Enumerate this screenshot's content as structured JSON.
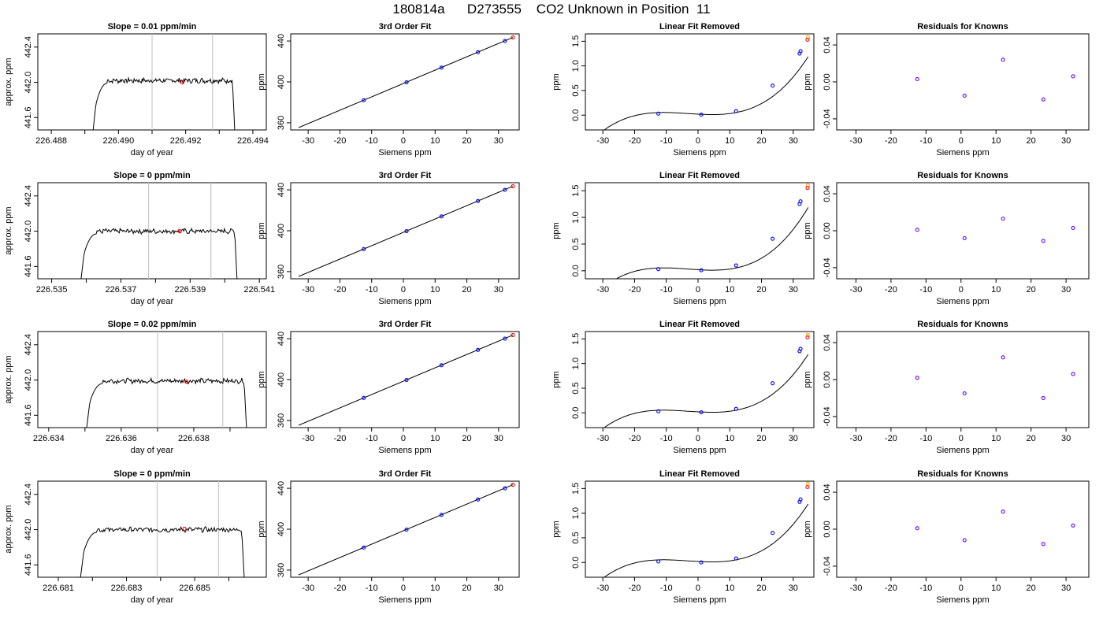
{
  "page_title": "180814a      D273555    CO2 Unknown in Position  11",
  "colors": {
    "trace": "#000000",
    "vline": "#c8c8c8",
    "unknown_point": "#ff0000",
    "known_point": "#0000ff",
    "residual_point": "#6a00ff",
    "highlight": "#ffa500"
  },
  "chart_data": [
    {
      "type": "line",
      "row": 1,
      "title": "Slope =  0.01  ppm/min",
      "xlabel": "day of year",
      "ylabel": "approx. ppm",
      "xlim": [
        226.4876,
        226.4944
      ],
      "ylim": [
        441.46,
        442.55
      ],
      "xticks": [
        226.488,
        226.489,
        226.49,
        226.491,
        226.492,
        226.493,
        226.494
      ],
      "xtick_labels": [
        "226.488",
        "",
        "226.490",
        "",
        "226.492",
        "",
        "226.494"
      ],
      "yticks": [
        441.6,
        442.0,
        442.4
      ],
      "ytick_labels": [
        "441.6",
        "442.0",
        "442.4"
      ],
      "trace_start": 226.4892,
      "trace_end": 226.4935,
      "plateau": 442.02,
      "vlines": [
        226.491,
        226.4928
      ],
      "unknown_point": {
        "x": 226.4919,
        "y": 442.0
      }
    },
    {
      "type": "line",
      "row": 2,
      "title": "Slope =  0  ppm/min",
      "xlabel": "day of year",
      "ylabel": "approx. ppm",
      "xlim": [
        226.5346,
        226.5412
      ],
      "ylim": [
        441.46,
        442.55
      ],
      "xticks": [
        226.535,
        226.536,
        226.537,
        226.538,
        226.539,
        226.54,
        226.541
      ],
      "xtick_labels": [
        "226.535",
        "",
        "226.537",
        "",
        "226.539",
        "",
        "226.541"
      ],
      "yticks": [
        441.6,
        442.0,
        442.4
      ],
      "ytick_labels": [
        "441.6",
        "442.0",
        "442.4"
      ],
      "trace_start": 226.5358,
      "trace_end": 226.5404,
      "plateau": 442.0,
      "vlines": [
        226.5378,
        226.5396
      ],
      "unknown_point": {
        "x": 226.5387,
        "y": 442.0
      }
    },
    {
      "type": "line",
      "row": 3,
      "title": "Slope =  0.02  ppm/min",
      "xlabel": "day of year",
      "ylabel": "approx. ppm",
      "xlim": [
        226.6337,
        226.64
      ],
      "ylim": [
        441.46,
        442.55
      ],
      "xticks": [
        226.634,
        226.635,
        226.636,
        226.637,
        226.638,
        226.639
      ],
      "xtick_labels": [
        "226.634",
        "",
        "226.636",
        "",
        "226.638",
        ""
      ],
      "yticks": [
        441.6,
        442.0,
        442.4
      ],
      "ytick_labels": [
        "441.6",
        "442.0",
        "442.4"
      ],
      "trace_start": 226.635,
      "trace_end": 226.6395,
      "plateau": 441.99,
      "vlines": [
        226.637,
        226.6388
      ],
      "unknown_point": {
        "x": 226.6378,
        "y": 441.98
      }
    },
    {
      "type": "line",
      "row": 4,
      "title": "Slope =  0  ppm/min",
      "xlabel": "day of year",
      "ylabel": "approx. ppm",
      "xlim": [
        226.6804,
        226.6871
      ],
      "ylim": [
        441.46,
        442.55
      ],
      "xticks": [
        226.681,
        226.682,
        226.683,
        226.684,
        226.685,
        226.686
      ],
      "xtick_labels": [
        "226.681",
        "",
        "226.683",
        "",
        "226.685",
        ""
      ],
      "yticks": [
        441.6,
        442.0,
        442.4
      ],
      "ytick_labels": [
        "441.6",
        "442.0",
        "442.4"
      ],
      "trace_start": 226.6816,
      "trace_end": 226.6865,
      "plateau": 442.0,
      "vlines": [
        226.6839,
        226.6857
      ],
      "unknown_point": {
        "x": 226.6847,
        "y": 442.01
      }
    },
    {
      "type": "line",
      "row": 1,
      "title": "3rd Order Fit",
      "xlabel": "Siemens ppm",
      "ylabel": "ppm",
      "xlim": [
        -35.5,
        36.5
      ],
      "ylim": [
        353,
        447
      ],
      "xticks": [
        -30,
        -20,
        -10,
        0,
        10,
        20,
        30
      ],
      "xtick_labels": [
        "-30",
        "-20",
        "-10",
        "0",
        "10",
        "20",
        "30"
      ],
      "yticks": [
        360,
        400,
        440
      ],
      "ytick_labels": [
        "360",
        "400",
        "440"
      ],
      "fit_line": [
        [
          -33,
          355.3
        ],
        [
          34.5,
          443.5
        ]
      ],
      "known_points": [
        [
          -12.5,
          382
        ],
        [
          1,
          399.6
        ],
        [
          12,
          414
        ],
        [
          23.5,
          429
        ],
        [
          32,
          440
        ]
      ],
      "unknown_point": [
        34.5,
        443.5
      ]
    },
    {
      "type": "line",
      "row": 2,
      "title": "3rd Order Fit",
      "xlabel": "Siemens ppm",
      "ylabel": "ppm",
      "xlim": [
        -35.5,
        36.5
      ],
      "ylim": [
        353,
        447
      ],
      "xticks": [
        -30,
        -20,
        -10,
        0,
        10,
        20,
        30
      ],
      "xtick_labels": [
        "-30",
        "-20",
        "-10",
        "0",
        "10",
        "20",
        "30"
      ],
      "yticks": [
        360,
        400,
        440
      ],
      "ytick_labels": [
        "360",
        "400",
        "440"
      ],
      "fit_line": [
        [
          -33,
          355.3
        ],
        [
          34.5,
          443.5
        ]
      ],
      "known_points": [
        [
          -12.5,
          382
        ],
        [
          1,
          399.6
        ],
        [
          12,
          414
        ],
        [
          23.5,
          429
        ],
        [
          32,
          440
        ]
      ],
      "unknown_point": [
        34.5,
        443.5
      ]
    },
    {
      "type": "line",
      "row": 3,
      "title": "3rd Order Fit",
      "xlabel": "Siemens ppm",
      "ylabel": "ppm",
      "xlim": [
        -35.5,
        36.5
      ],
      "ylim": [
        353,
        447
      ],
      "xticks": [
        -30,
        -20,
        -10,
        0,
        10,
        20,
        30
      ],
      "xtick_labels": [
        "-30",
        "-20",
        "-10",
        "0",
        "10",
        "20",
        "30"
      ],
      "yticks": [
        360,
        400,
        440
      ],
      "ytick_labels": [
        "360",
        "400",
        "440"
      ],
      "fit_line": [
        [
          -33,
          355.3
        ],
        [
          34.5,
          443.5
        ]
      ],
      "known_points": [
        [
          -12.5,
          382
        ],
        [
          1,
          399.6
        ],
        [
          12,
          414
        ],
        [
          23.5,
          429
        ],
        [
          32,
          440
        ]
      ],
      "unknown_point": [
        34.5,
        443.5
      ]
    },
    {
      "type": "line",
      "row": 4,
      "title": "3rd Order Fit",
      "xlabel": "Siemens ppm",
      "ylabel": "ppm",
      "xlim": [
        -35.5,
        36.5
      ],
      "ylim": [
        353,
        447
      ],
      "xticks": [
        -30,
        -20,
        -10,
        0,
        10,
        20,
        30
      ],
      "xtick_labels": [
        "-30",
        "-20",
        "-10",
        "0",
        "10",
        "20",
        "30"
      ],
      "yticks": [
        360,
        400,
        440
      ],
      "ytick_labels": [
        "360",
        "400",
        "440"
      ],
      "fit_line": [
        [
          -33,
          355.3
        ],
        [
          34.5,
          443.5
        ]
      ],
      "known_points": [
        [
          -12.5,
          382
        ],
        [
          1,
          399.6
        ],
        [
          12,
          414
        ],
        [
          23.5,
          429
        ],
        [
          32,
          440
        ]
      ],
      "unknown_point": [
        34.5,
        443.5
      ]
    },
    {
      "type": "line",
      "row": 1,
      "title": "Linear Fit Removed",
      "xlabel": "Siemens ppm",
      "ylabel": "ppm",
      "xlim": [
        -35.5,
        36.5
      ],
      "ylim": [
        -0.3,
        1.65
      ],
      "xticks": [
        -30,
        -20,
        -10,
        0,
        10,
        20,
        30
      ],
      "xtick_labels": [
        "-30",
        "-20",
        "-10",
        "0",
        "10",
        "20",
        "30"
      ],
      "yticks": [
        0.0,
        0.5,
        1.0,
        1.5
      ],
      "ytick_labels": [
        "0.0",
        "0.5",
        "1.0",
        "1.5"
      ],
      "fit_curve": {
        "type": "cubic",
        "x_start": -33,
        "x_end": 34.7,
        "coeffs": [
          0.02,
          -0.0035,
          0.00023,
          2.42e-05
        ]
      },
      "known_points": [
        [
          -12.5,
          0.03
        ],
        [
          1,
          0.01
        ],
        [
          12,
          0.08
        ],
        [
          23.5,
          0.6
        ],
        [
          32,
          1.25
        ],
        [
          32.3,
          1.3
        ]
      ],
      "unknown_point": [
        34.5,
        1.53
      ],
      "highlight_point": [
        34.6,
        1.58
      ]
    },
    {
      "type": "line",
      "row": 2,
      "title": "Linear Fit Removed",
      "xlabel": "Siemens ppm",
      "ylabel": "ppm",
      "xlim": [
        -35.5,
        36.5
      ],
      "ylim": [
        -0.15,
        1.65
      ],
      "xticks": [
        -30,
        -20,
        -10,
        0,
        10,
        20,
        30
      ],
      "xtick_labels": [
        "-30",
        "-20",
        "-10",
        "0",
        "10",
        "20",
        "30"
      ],
      "yticks": [
        0.0,
        0.5,
        1.0,
        1.5
      ],
      "ytick_labels": [
        "0.0",
        "0.5",
        "1.0",
        "1.5"
      ],
      "fit_curve": {
        "type": "cubic",
        "x_start": -33,
        "x_end": 34.7,
        "coeffs": [
          0.02,
          -0.0035,
          0.00023,
          2.42e-05
        ]
      },
      "known_points": [
        [
          -12.5,
          0.03
        ],
        [
          1,
          0.01
        ],
        [
          12,
          0.1
        ],
        [
          23.5,
          0.6
        ],
        [
          32,
          1.25
        ],
        [
          32.3,
          1.3
        ]
      ],
      "unknown_point": [
        34.5,
        1.55
      ],
      "highlight_point": [
        34.6,
        1.6
      ]
    },
    {
      "type": "line",
      "row": 3,
      "title": "Linear Fit Removed",
      "xlabel": "Siemens ppm",
      "ylabel": "ppm",
      "xlim": [
        -35.5,
        36.5
      ],
      "ylim": [
        -0.3,
        1.65
      ],
      "xticks": [
        -30,
        -20,
        -10,
        0,
        10,
        20,
        30
      ],
      "xtick_labels": [
        "-30",
        "-20",
        "-10",
        "0",
        "10",
        "20",
        "30"
      ],
      "yticks": [
        0.0,
        0.5,
        1.0,
        1.5
      ],
      "ytick_labels": [
        "0.0",
        "0.5",
        "1.0",
        "1.5"
      ],
      "fit_curve": {
        "type": "cubic",
        "x_start": -33,
        "x_end": 34.7,
        "coeffs": [
          0.02,
          -0.0035,
          0.00023,
          2.42e-05
        ]
      },
      "known_points": [
        [
          -12.5,
          0.03
        ],
        [
          1,
          0.01
        ],
        [
          12,
          0.08
        ],
        [
          23.5,
          0.6
        ],
        [
          32,
          1.25
        ],
        [
          32.3,
          1.3
        ]
      ],
      "unknown_point": [
        34.5,
        1.53
      ],
      "highlight_point": [
        34.6,
        1.58
      ]
    },
    {
      "type": "line",
      "row": 4,
      "title": "Linear Fit Removed",
      "xlabel": "Siemens ppm",
      "ylabel": "ppm",
      "xlim": [
        -35.5,
        36.5
      ],
      "ylim": [
        -0.3,
        1.65
      ],
      "xticks": [
        -30,
        -20,
        -10,
        0,
        10,
        20,
        30
      ],
      "xtick_labels": [
        "-30",
        "-20",
        "-10",
        "0",
        "10",
        "20",
        "30"
      ],
      "yticks": [
        0.0,
        0.5,
        1.0,
        1.5
      ],
      "ytick_labels": [
        "0.0",
        "0.5",
        "1.0",
        "1.5"
      ],
      "fit_curve": {
        "type": "cubic",
        "x_start": -33,
        "x_end": 34.7,
        "coeffs": [
          0.02,
          -0.0035,
          0.00023,
          2.42e-05
        ]
      },
      "known_points": [
        [
          -12.5,
          0.02
        ],
        [
          1,
          0.0
        ],
        [
          12,
          0.08
        ],
        [
          23.5,
          0.6
        ],
        [
          32,
          1.23
        ],
        [
          32.3,
          1.28
        ]
      ],
      "unknown_point": [
        34.5,
        1.53
      ],
      "highlight_point": [
        34.6,
        1.6
      ]
    },
    {
      "type": "scatter",
      "row": 1,
      "title": "Residuals for Knowns",
      "xlabel": "Siemens ppm",
      "ylabel": "ppm",
      "xlim": [
        -35.5,
        36.5
      ],
      "ylim": [
        -0.052,
        0.052
      ],
      "xticks": [
        -30,
        -20,
        -10,
        0,
        10,
        20,
        30
      ],
      "xtick_labels": [
        "-30",
        "-20",
        "-10",
        "0",
        "10",
        "20",
        "30"
      ],
      "yticks": [
        -0.04,
        0.0,
        0.04
      ],
      "ytick_labels": [
        "-0.04",
        "0.00",
        "0.04"
      ],
      "points": [
        [
          -12.5,
          0.003
        ],
        [
          1,
          -0.015
        ],
        [
          12,
          0.024
        ],
        [
          23.5,
          -0.019
        ],
        [
          32,
          0.006
        ]
      ]
    },
    {
      "type": "scatter",
      "row": 2,
      "title": "Residuals for Knowns",
      "xlabel": "Siemens ppm",
      "ylabel": "ppm",
      "xlim": [
        -35.5,
        36.5
      ],
      "ylim": [
        -0.052,
        0.052
      ],
      "xticks": [
        -30,
        -20,
        -10,
        0,
        10,
        20,
        30
      ],
      "xtick_labels": [
        "-30",
        "-20",
        "-10",
        "0",
        "10",
        "20",
        "30"
      ],
      "yticks": [
        -0.04,
        0.0,
        0.04
      ],
      "ytick_labels": [
        "-0.04",
        "0.00",
        "0.04"
      ],
      "points": [
        [
          -12.5,
          0.001
        ],
        [
          1,
          -0.008
        ],
        [
          12,
          0.013
        ],
        [
          23.5,
          -0.011
        ],
        [
          32,
          0.003
        ]
      ]
    },
    {
      "type": "scatter",
      "row": 3,
      "title": "Residuals for Knowns",
      "xlabel": "Siemens ppm",
      "ylabel": "ppm",
      "xlim": [
        -35.5,
        36.5
      ],
      "ylim": [
        -0.052,
        0.052
      ],
      "xticks": [
        -30,
        -20,
        -10,
        0,
        10,
        20,
        30
      ],
      "xtick_labels": [
        "-30",
        "-20",
        "-10",
        "0",
        "10",
        "20",
        "30"
      ],
      "yticks": [
        -0.04,
        0.0,
        0.04
      ],
      "ytick_labels": [
        "-0.04",
        "0.00",
        "0.04"
      ],
      "points": [
        [
          -12.5,
          0.002
        ],
        [
          1,
          -0.015
        ],
        [
          12,
          0.024
        ],
        [
          23.5,
          -0.02
        ],
        [
          32,
          0.006
        ]
      ]
    },
    {
      "type": "scatter",
      "row": 4,
      "title": "Residuals for Knowns",
      "xlabel": "Siemens ppm",
      "ylabel": "ppm",
      "xlim": [
        -35.5,
        36.5
      ],
      "ylim": [
        -0.052,
        0.052
      ],
      "xticks": [
        -30,
        -20,
        -10,
        0,
        10,
        20,
        30
      ],
      "xtick_labels": [
        "-30",
        "-20",
        "-10",
        "0",
        "10",
        "20",
        "30"
      ],
      "yticks": [
        -0.04,
        0.0,
        0.04
      ],
      "ytick_labels": [
        "-0.04",
        "0.00",
        "0.04"
      ],
      "points": [
        [
          -12.5,
          0.001
        ],
        [
          1,
          -0.012
        ],
        [
          12,
          0.019
        ],
        [
          23.5,
          -0.016
        ],
        [
          32,
          0.004
        ]
      ]
    }
  ]
}
